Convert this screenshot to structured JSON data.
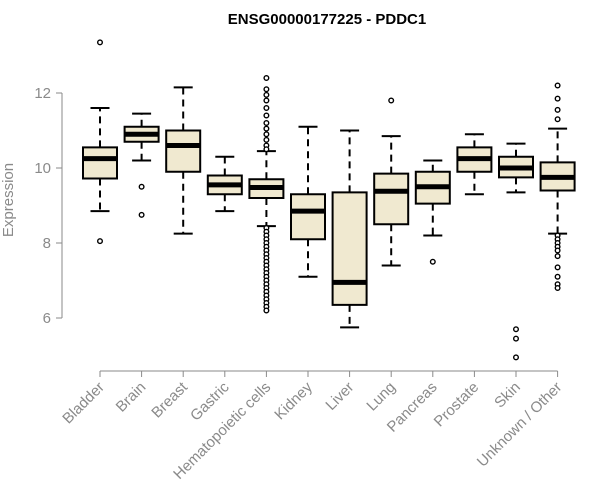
{
  "chart_data": {
    "type": "boxplot",
    "title": "ENSG00000177225 - PDDC1",
    "ylabel": "Expression",
    "xlabel": "",
    "ylim": [
      4.8,
      14.0
    ],
    "yticks": [
      6,
      8,
      10,
      12
    ],
    "ytick_labels": [
      "6",
      "8",
      "10",
      "12"
    ],
    "box_fill": "#f0e9d0",
    "box_stroke": "#000000",
    "axis_color": "#8a8a8a",
    "categories": [
      "Bladder",
      "Brain",
      "Breast",
      "Gastric",
      "Hematopoietic cells",
      "Kidney",
      "Liver",
      "Lung",
      "Pancreas",
      "Prostate",
      "Skin",
      "Unknown / Other"
    ],
    "series": [
      {
        "category": "Bladder",
        "whisker_low": 8.85,
        "q1": 9.72,
        "median": 10.25,
        "q3": 10.55,
        "whisker_high": 11.6,
        "outliers": [
          13.35,
          8.05
        ]
      },
      {
        "category": "Brain",
        "whisker_low": 10.2,
        "q1": 10.7,
        "median": 10.9,
        "q3": 11.1,
        "whisker_high": 11.45,
        "outliers": [
          9.5,
          8.75
        ]
      },
      {
        "category": "Breast",
        "whisker_low": 8.25,
        "q1": 9.9,
        "median": 10.6,
        "q3": 11.0,
        "whisker_high": 12.15,
        "outliers": []
      },
      {
        "category": "Gastric",
        "whisker_low": 8.85,
        "q1": 9.3,
        "median": 9.55,
        "q3": 9.8,
        "whisker_high": 10.3,
        "outliers": []
      },
      {
        "category": "Hematopoietic cells",
        "whisker_low": 8.45,
        "q1": 9.2,
        "median": 9.48,
        "q3": 9.7,
        "whisker_high": 10.45,
        "outliers": [
          12.4,
          12.1,
          11.95,
          11.8,
          11.6,
          11.4,
          11.2,
          11.05,
          10.9,
          10.75,
          10.6,
          10.5,
          8.4,
          8.3,
          8.2,
          8.1,
          8.0,
          7.9,
          7.8,
          7.7,
          7.6,
          7.5,
          7.4,
          7.3,
          7.2,
          7.1,
          7.0,
          6.9,
          6.8,
          6.7,
          6.6,
          6.5,
          6.4,
          6.3,
          6.2
        ]
      },
      {
        "category": "Kidney",
        "whisker_low": 7.1,
        "q1": 8.1,
        "median": 8.85,
        "q3": 9.3,
        "whisker_high": 11.1,
        "outliers": []
      },
      {
        "category": "Liver",
        "whisker_low": 5.75,
        "q1": 6.35,
        "median": 6.95,
        "q3": 9.35,
        "whisker_high": 11.0,
        "outliers": []
      },
      {
        "category": "Lung",
        "whisker_low": 7.4,
        "q1": 8.5,
        "median": 9.38,
        "q3": 9.85,
        "whisker_high": 10.85,
        "outliers": [
          11.8
        ]
      },
      {
        "category": "Pancreas",
        "whisker_low": 8.2,
        "q1": 9.05,
        "median": 9.5,
        "q3": 9.9,
        "whisker_high": 10.2,
        "outliers": [
          7.5
        ]
      },
      {
        "category": "Prostate",
        "whisker_low": 9.3,
        "q1": 9.9,
        "median": 10.25,
        "q3": 10.55,
        "whisker_high": 10.9,
        "outliers": []
      },
      {
        "category": "Skin",
        "whisker_low": 9.35,
        "q1": 9.75,
        "median": 10.0,
        "q3": 10.3,
        "whisker_high": 10.65,
        "outliers": [
          5.7,
          5.45,
          4.95
        ]
      },
      {
        "category": "Unknown / Other",
        "whisker_low": 8.25,
        "q1": 9.4,
        "median": 9.75,
        "q3": 10.15,
        "whisker_high": 11.05,
        "outliers": [
          12.2,
          11.85,
          11.55,
          11.3,
          8.2,
          8.1,
          8.0,
          7.9,
          7.8,
          7.65,
          7.35,
          7.1,
          6.9,
          6.8
        ]
      }
    ]
  }
}
